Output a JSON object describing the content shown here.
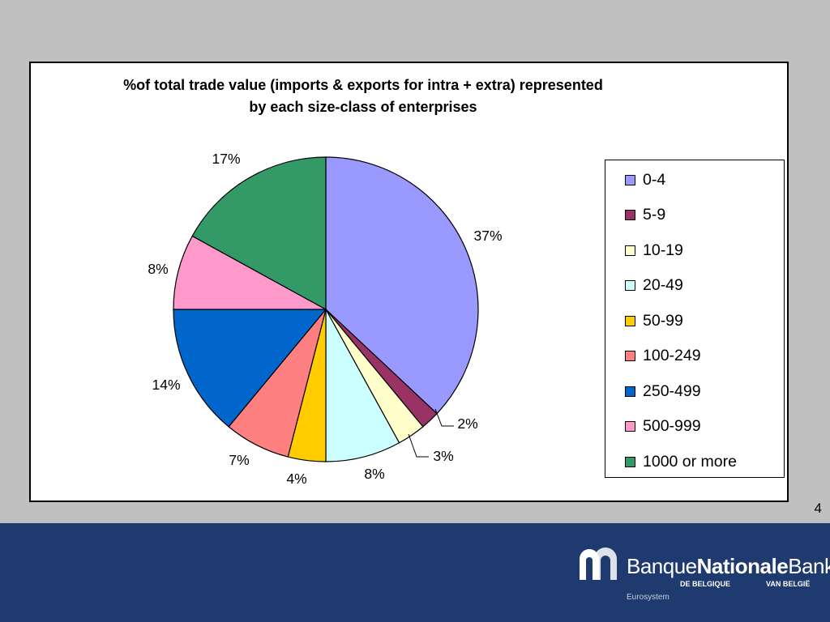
{
  "chart_data": {
    "type": "pie",
    "title_lines": [
      "%of total trade value (imports & exports for intra + extra) represented",
      "by each size-class of enterprises"
    ],
    "categories": [
      "0-4",
      "5-9",
      "10-19",
      "20-49",
      "50-99",
      "100-249",
      "250-499",
      "500-999",
      "1000 or more"
    ],
    "values": [
      37,
      2,
      3,
      8,
      4,
      7,
      14,
      8,
      17
    ],
    "labels": [
      "37%",
      "2%",
      "3%",
      "8%",
      "4%",
      "7%",
      "14%",
      "8%",
      "17%"
    ],
    "colors": [
      "#9999ff",
      "#993366",
      "#ffffcc",
      "#ccffff",
      "#ffcc00",
      "#ff8080",
      "#0066cc",
      "#ff99cc",
      "#339966"
    ],
    "start_angle_deg": 0,
    "direction": "clockwise",
    "legend_position": "right"
  },
  "page_number": "4",
  "footer": {
    "logo_text_regular": "Banque",
    "logo_text_bold": "Nationale",
    "logo_text_end": "Bank",
    "logo_sub_left": "DE BELGIQUE",
    "logo_sub_right": "VAN BELGIË",
    "logo_eurosystem": "Eurosystem",
    "background_color": "#1e3a6e"
  }
}
